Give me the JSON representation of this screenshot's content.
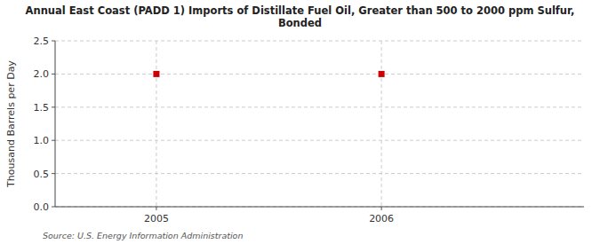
{
  "chart_data": {
    "type": "scatter",
    "title": "Annual East Coast (PADD 1) Imports of Distillate Fuel Oil, Greater than 500 to 2000 ppm Sulfur,\nBonded",
    "ylabel": "Thousand Barrels per Day",
    "source": "Source: U.S. Energy Information Administration",
    "x": [
      2005,
      2006
    ],
    "values": [
      2.0,
      2.0
    ],
    "color": "#cc0000",
    "marker": "square",
    "xlim": [
      2004.55,
      2006.9
    ],
    "ylim": [
      0.0,
      2.5
    ],
    "xticks": [
      2005,
      2006
    ],
    "yticks": [
      {
        "value": 0,
        "label": "0.0"
      },
      0.5,
      {
        "value": 1,
        "label": "1.0"
      },
      1.5,
      {
        "value": 2,
        "label": "2.0"
      },
      2.5
    ],
    "grid": true
  }
}
